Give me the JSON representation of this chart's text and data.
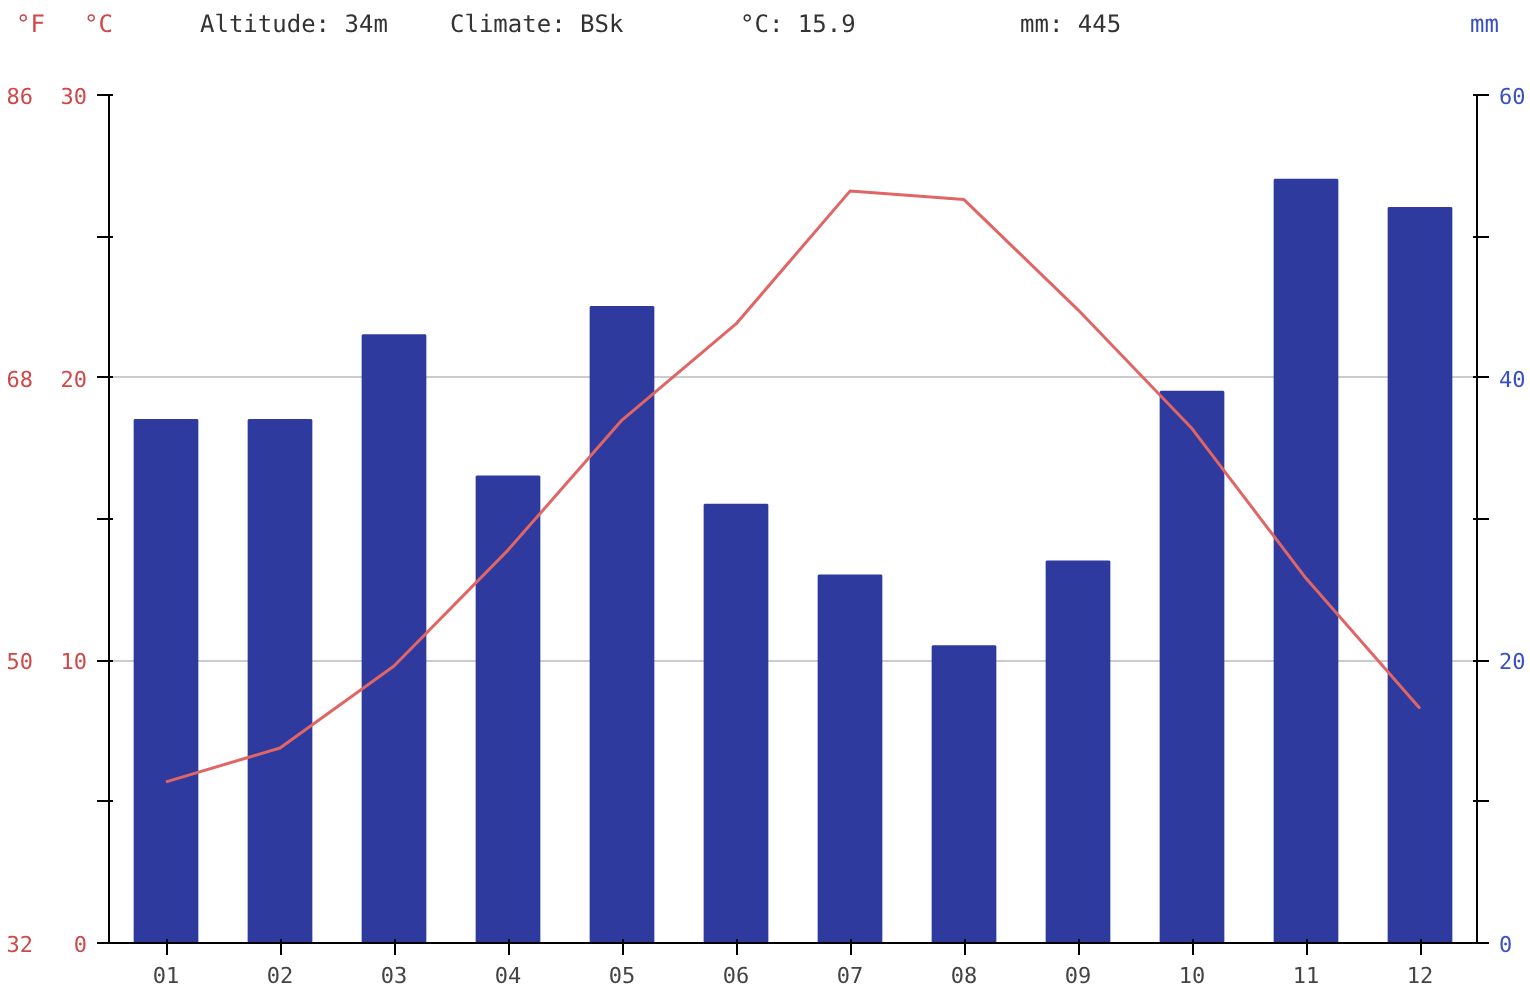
{
  "chart_data": {
    "type": "bar",
    "annotations": [
      "Altitude: 34m",
      "Climate: BSk",
      "°C: 15.9",
      "mm: 445"
    ],
    "ylabel": "°C",
    "y2label": "mm",
    "y3label": "°F",
    "categories": [
      "01",
      "02",
      "03",
      "04",
      "05",
      "06",
      "07",
      "08",
      "09",
      "10",
      "11",
      "12"
    ],
    "series": [
      {
        "axis": "y2",
        "color": "#2e3a9e",
        "values": [
          37,
          37,
          43,
          33,
          45,
          31,
          26,
          21,
          27,
          39,
          54,
          52
        ]
      },
      {
        "type": "line",
        "axis": "y",
        "color": "#e06666",
        "values": [
          5.7,
          6.9,
          9.8,
          13.9,
          18.5,
          21.9,
          26.6,
          26.3,
          22.4,
          18.2,
          12.9,
          8.3
        ]
      }
    ],
    "ylim": [
      0,
      30
    ],
    "yticks": [
      0,
      {
        "value": 5,
        "label": null
      },
      10,
      {
        "value": 15,
        "label": null
      },
      20,
      {
        "value": 25,
        "label": null
      },
      30
    ],
    "y2lim": [
      0,
      60
    ],
    "y2ticks": [
      0,
      {
        "value": 10,
        "label": null
      },
      20,
      {
        "value": 30,
        "label": null
      },
      40,
      {
        "value": 50,
        "label": null
      },
      60
    ],
    "y3lim": [
      32,
      86
    ],
    "y3ticks": [
      32,
      50,
      68,
      86
    ],
    "grid": "y",
    "marker": "none",
    "line_style": "solid"
  }
}
